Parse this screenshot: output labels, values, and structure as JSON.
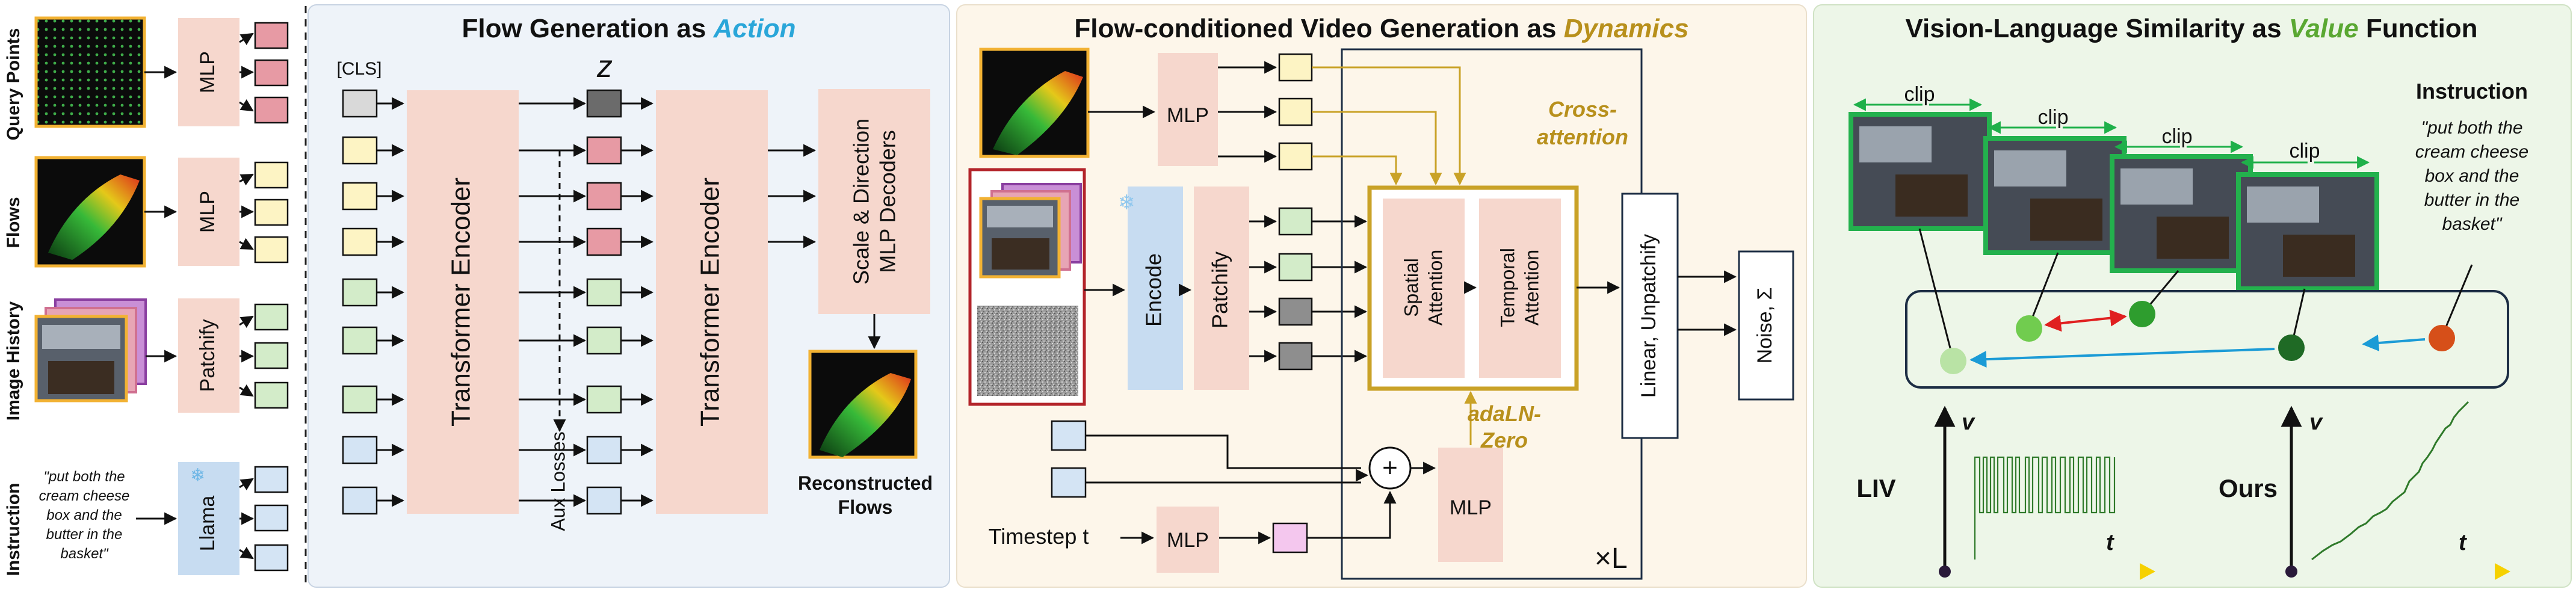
{
  "panel1": {
    "title_prefix": "Flow Generation as ",
    "title_emph": "Action",
    "row_labels": [
      "Query Points",
      "Flows",
      "Image History",
      "Instruction"
    ],
    "instruction_text": [
      "\"put both the",
      "cream cheese",
      "box and the",
      "butter in the",
      "basket\""
    ],
    "mlp_label": "MLP",
    "patchify_label": "Patchify",
    "llama_label": "Llama",
    "cls_label": "[CLS]",
    "z_label": "z",
    "encoder_label": "Transformer Encoder",
    "aux_label": "Aux Losses",
    "decoder_label": [
      "Scale & Direction",
      "MLP Decoders"
    ],
    "recon_label": [
      "Reconstructed",
      "Flows"
    ]
  },
  "panel2": {
    "title_prefix": "Flow-conditioned Video Generation as ",
    "title_emph": "Dynamics",
    "mlp_label": "MLP",
    "encode_label": "Encode",
    "patchify_label": "Patchify",
    "cross_attention": [
      "Cross-",
      "attention"
    ],
    "spatial_label": [
      "Spatial",
      "Attention"
    ],
    "temporal_label": [
      "Temporal",
      "Attention"
    ],
    "adaln_label": [
      "adaLN-",
      "Zero"
    ],
    "linear_label": "Linear, Unpatchify",
    "noise_label": "Noise, Σ",
    "timestep_label": "Timestep t",
    "repeat_label": "×L"
  },
  "panel3": {
    "title_prefix": "Vision-Language Similarity as ",
    "title_emph": "Value",
    "title_suffix": " Function",
    "clip_label": "clip",
    "instruction_heading": "Instruction",
    "instruction_text": [
      "\"put both the",
      "cream cheese",
      "box and the",
      "butter in the",
      "basket\""
    ],
    "liv_label": "LIV",
    "ours_label": "Ours",
    "v_axis": "v",
    "t_axis": "t"
  },
  "colors": {
    "action": "#2aa6d9",
    "dynamics": "#b8901c",
    "value": "#5aa832",
    "panel1_bg": "#eef3f9",
    "panel2_bg": "#fdf6ea",
    "panel3_bg": "#edf6e8",
    "salmon": "#f6d7cd",
    "blue_box": "#c7dcf1"
  }
}
